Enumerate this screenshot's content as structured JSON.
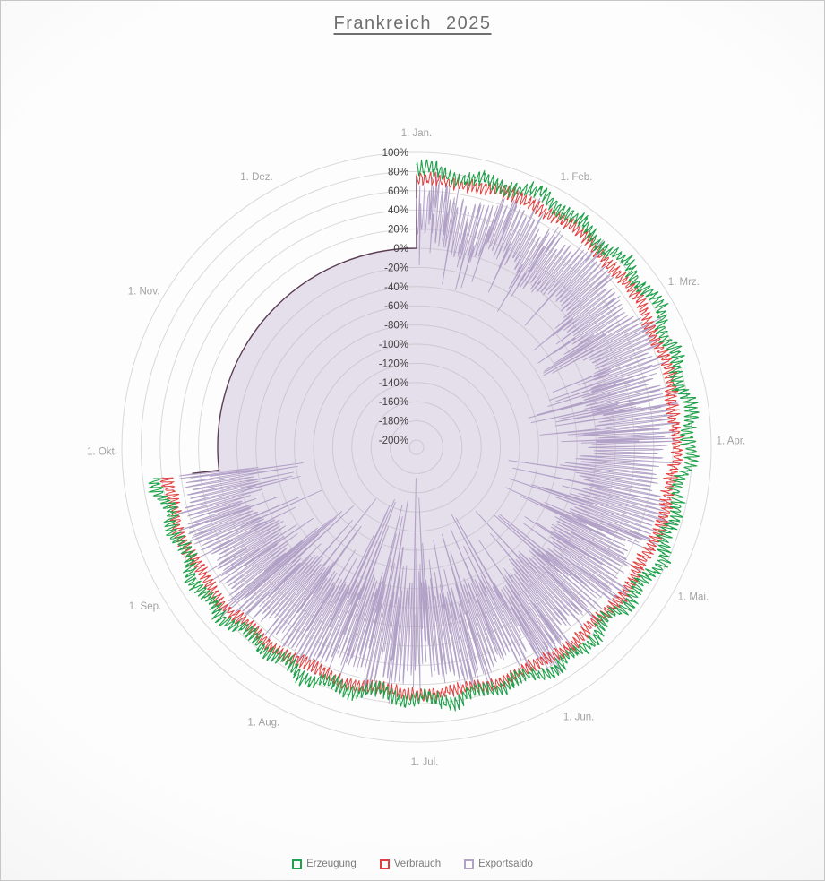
{
  "title": {
    "text": "Frankreich 2025"
  },
  "colors": {
    "grid": "#d9d9d9",
    "axis_text": "#3f3f3f",
    "month_text": "#a3a3a3",
    "legend_text": "#7d7d7d",
    "title_text": "#6f6f6f"
  },
  "chart_data": {
    "type": "line",
    "subtype": "polar-radar-daily",
    "title": "Frankreich 2025",
    "units": "%",
    "radial_axis": {
      "min": -200,
      "max": 100,
      "step": 20,
      "tick_labels": [
        "100%",
        "80%",
        "60%",
        "40%",
        "20%",
        "0%",
        "-20%",
        "-40%",
        "-60%",
        "-80%",
        "-100%",
        "-120%",
        "-140%",
        "-160%",
        "-180%",
        "-200%"
      ]
    },
    "angular_axis": {
      "total_days": 365,
      "months": [
        {
          "label": "1. Jan.",
          "day": 0
        },
        {
          "label": "1. Feb.",
          "day": 31
        },
        {
          "label": "1. Mrz.",
          "day": 59
        },
        {
          "label": "1. Apr.",
          "day": 90
        },
        {
          "label": "1. Mai.",
          "day": 120
        },
        {
          "label": "1. Jun.",
          "day": 151
        },
        {
          "label": "1. Jul.",
          "day": 181
        },
        {
          "label": "1. Aug.",
          "day": 212
        },
        {
          "label": "1. Sep.",
          "day": 243
        },
        {
          "label": "1. Okt.",
          "day": 273
        },
        {
          "label": "1. Nov.",
          "day": 304
        },
        {
          "label": "1. Dez.",
          "day": 334
        }
      ]
    },
    "data_coverage": {
      "start_day": 0,
      "end_day": 267,
      "baseline_for_missing": 0,
      "start_edge_top_value": 76
    },
    "anchor_days": [
      0,
      31,
      59,
      90,
      120,
      151,
      181,
      212,
      243,
      273
    ],
    "series": [
      {
        "name": "Erzeugung",
        "color": "#1fa24a",
        "daily_mean_anchors": [
          79,
          83,
          81,
          76,
          68,
          61,
          54,
          55,
          60,
          63
        ],
        "intraday_amplitude": 5.5
      },
      {
        "name": "Verbrauch",
        "color": "#e2403e",
        "daily_mean_anchors": [
          71,
          74,
          69,
          63,
          57,
          52,
          49,
          47,
          53,
          56
        ],
        "intraday_amplitude": 5.0
      },
      {
        "name": "Exportsaldo",
        "color": "#b2a1c7",
        "fill": "rgba(179,162,199,0.32)",
        "outline": "#5c3e54",
        "daily_mean_anchors": [
          32,
          30,
          26,
          14,
          4,
          -4,
          -16,
          -8,
          2,
          6
        ],
        "intraday_amplitude_anchors": [
          26,
          26,
          32,
          40,
          42,
          44,
          48,
          46,
          36,
          34
        ],
        "negative_spike_depth_anchors": [
          40,
          42,
          55,
          70,
          85,
          95,
          115,
          100,
          70,
          60
        ],
        "negative_spike_probability": 0.07,
        "positive_spike_probability": 0.05,
        "points_per_day": 8,
        "seed": 11
      }
    ]
  }
}
